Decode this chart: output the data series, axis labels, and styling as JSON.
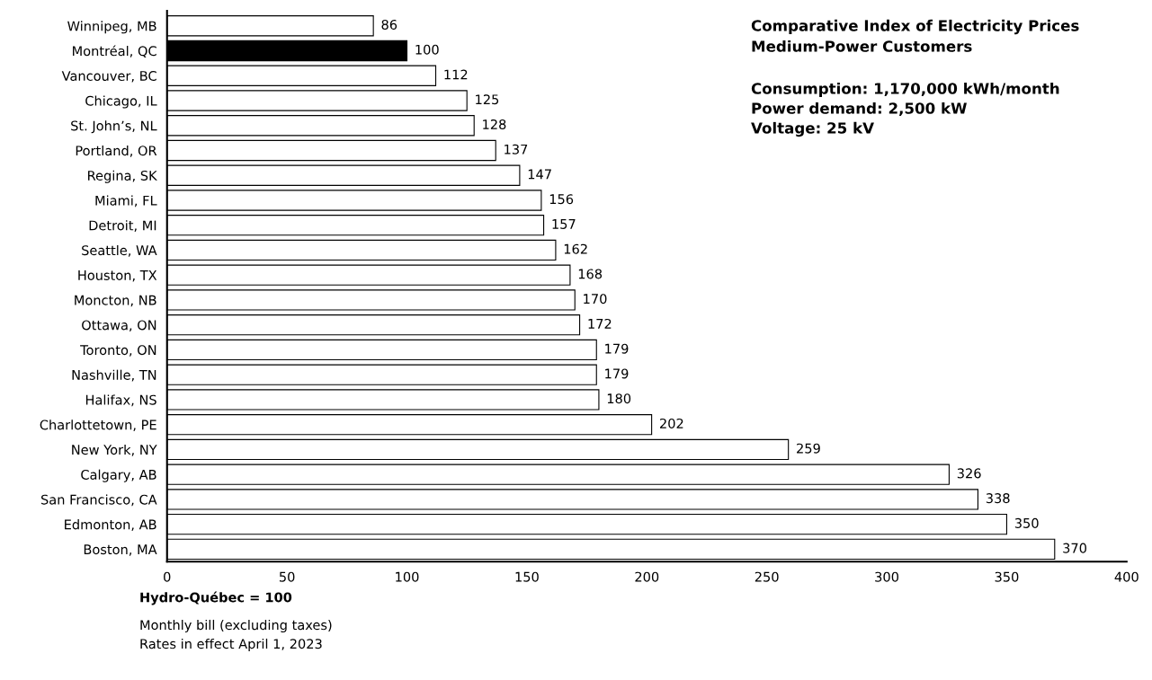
{
  "chart_data": {
    "type": "bar",
    "orientation": "horizontal",
    "title": "Comparative Index of Electricity Prices",
    "subtitle": "Medium-Power Customers",
    "categories": [
      "Winnipeg, MB",
      "Montréal, QC",
      "Vancouver, BC",
      "Chicago, IL",
      "St. John’s, NL",
      "Portland, OR",
      "Regina, SK",
      "Miami, FL",
      "Detroit, MI",
      "Seattle, WA",
      "Houston, TX",
      "Moncton, NB",
      "Ottawa, ON",
      "Toronto, ON",
      "Nashville, TN",
      "Halifax, NS",
      "Charlottetown, PE",
      "New York, NY",
      "Calgary, AB",
      "San Francisco, CA",
      "Edmonton, AB",
      "Boston, MA"
    ],
    "values": [
      86,
      100,
      112,
      125,
      128,
      137,
      147,
      156,
      157,
      162,
      168,
      170,
      172,
      179,
      179,
      180,
      202,
      259,
      326,
      338,
      350,
      370
    ],
    "colors": [
      "#ffffff",
      "#000000",
      "#ffffff",
      "#ffffff",
      "#ffffff",
      "#ffffff",
      "#ffffff",
      "#ffffff",
      "#ffffff",
      "#ffffff",
      "#ffffff",
      "#ffffff",
      "#ffffff",
      "#ffffff",
      "#ffffff",
      "#ffffff",
      "#ffffff",
      "#ffffff",
      "#ffffff",
      "#ffffff",
      "#ffffff",
      "#ffffff"
    ],
    "xlim": [
      0,
      400
    ],
    "xticks": [
      0,
      50,
      100,
      150,
      200,
      250,
      300,
      350,
      400
    ],
    "data_labels": true,
    "grid": false,
    "legend": false,
    "annotations": [
      "Consumption: 1,170,000 kWh/month",
      "Power demand: 2,500 kW",
      "Voltage: 25 kV",
      "Hydro-Québec = 100",
      "Monthly bill (excluding taxes)",
      "Rates in effect April 1, 2023"
    ]
  }
}
